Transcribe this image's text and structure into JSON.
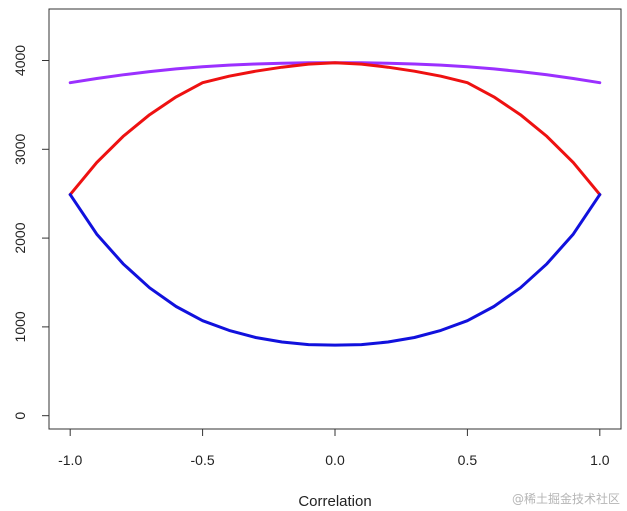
{
  "chart_data": {
    "type": "line",
    "title": "",
    "xlabel": "Correlation",
    "ylabel": "",
    "xlim": [
      -1.08,
      1.08
    ],
    "ylim": [
      -150,
      4580
    ],
    "x_ticks": [
      -1.0,
      -0.5,
      0.0,
      0.5,
      1.0
    ],
    "x_tick_labels": [
      "-1.0",
      "-0.5",
      "0.0",
      "0.5",
      "1.0"
    ],
    "y_ticks": [
      0,
      1000,
      2000,
      3000,
      4000
    ],
    "y_tick_labels": [
      "0",
      "1000",
      "2000",
      "3000",
      "4000"
    ],
    "grid": false,
    "legend": "none",
    "x": [
      -1.0,
      -0.9,
      -0.8,
      -0.7,
      -0.6,
      -0.5,
      -0.4,
      -0.3,
      -0.2,
      -0.1,
      0.0,
      0.1,
      0.2,
      0.3,
      0.4,
      0.5,
      0.6,
      0.7,
      0.8,
      0.9,
      1.0
    ],
    "series": [
      {
        "color": "#9b30ff",
        "values": [
          3750,
          3797,
          3839,
          3875,
          3905,
          3929,
          3948,
          3961,
          3969,
          3974,
          3975,
          3974,
          3969,
          3961,
          3948,
          3929,
          3905,
          3875,
          3839,
          3797,
          3750
        ]
      },
      {
        "color": "#ee1111",
        "values": [
          2490,
          2850,
          3145,
          3390,
          3590,
          3750,
          3823,
          3880,
          3925,
          3960,
          3975,
          3960,
          3925,
          3880,
          3823,
          3750,
          3590,
          3390,
          3145,
          2850,
          2490
        ]
      },
      {
        "color": "#1111dd",
        "values": [
          2490,
          2045,
          1710,
          1440,
          1230,
          1070,
          960,
          880,
          830,
          800,
          795,
          800,
          830,
          880,
          960,
          1070,
          1230,
          1440,
          1710,
          2045,
          2490
        ]
      }
    ]
  },
  "watermark": "@稀土掘金技术社区"
}
